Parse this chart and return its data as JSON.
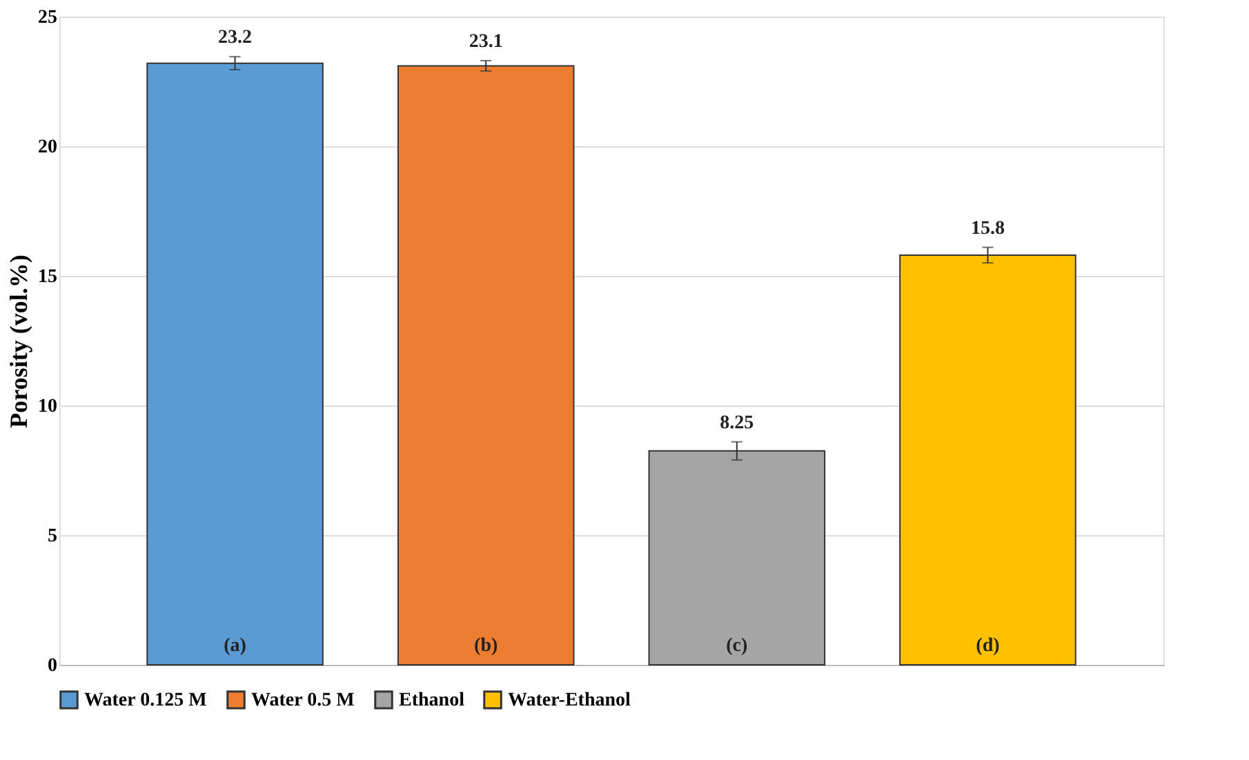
{
  "chart_data": {
    "type": "bar",
    "ylabel": "Porosity (vol.%)",
    "categories": [
      "(a)",
      "(b)",
      "(c)",
      "(d)"
    ],
    "series": [
      {
        "name": "Water 0.125 M",
        "color": "#5b9bd5",
        "values": [
          23.2,
          null,
          null,
          null
        ],
        "errors": [
          0.25,
          null,
          null,
          null
        ]
      },
      {
        "name": "Water 0.5 M",
        "color": "#ed7d31",
        "values": [
          null,
          23.1,
          null,
          null
        ],
        "errors": [
          null,
          0.2,
          null,
          null
        ]
      },
      {
        "name": "Ethanol",
        "color": "#a5a5a5",
        "values": [
          null,
          null,
          8.25,
          null
        ],
        "errors": [
          null,
          null,
          0.35,
          null
        ]
      },
      {
        "name": "Water-Ethanol",
        "color": "#ffc000",
        "values": [
          null,
          null,
          null,
          15.8
        ],
        "errors": [
          null,
          null,
          null,
          0.3
        ]
      }
    ],
    "ylim": [
      0,
      25
    ],
    "yticks": [
      0,
      5,
      10,
      15,
      20,
      25
    ],
    "grid": "y",
    "legend": "bottom",
    "data_labels": true
  }
}
